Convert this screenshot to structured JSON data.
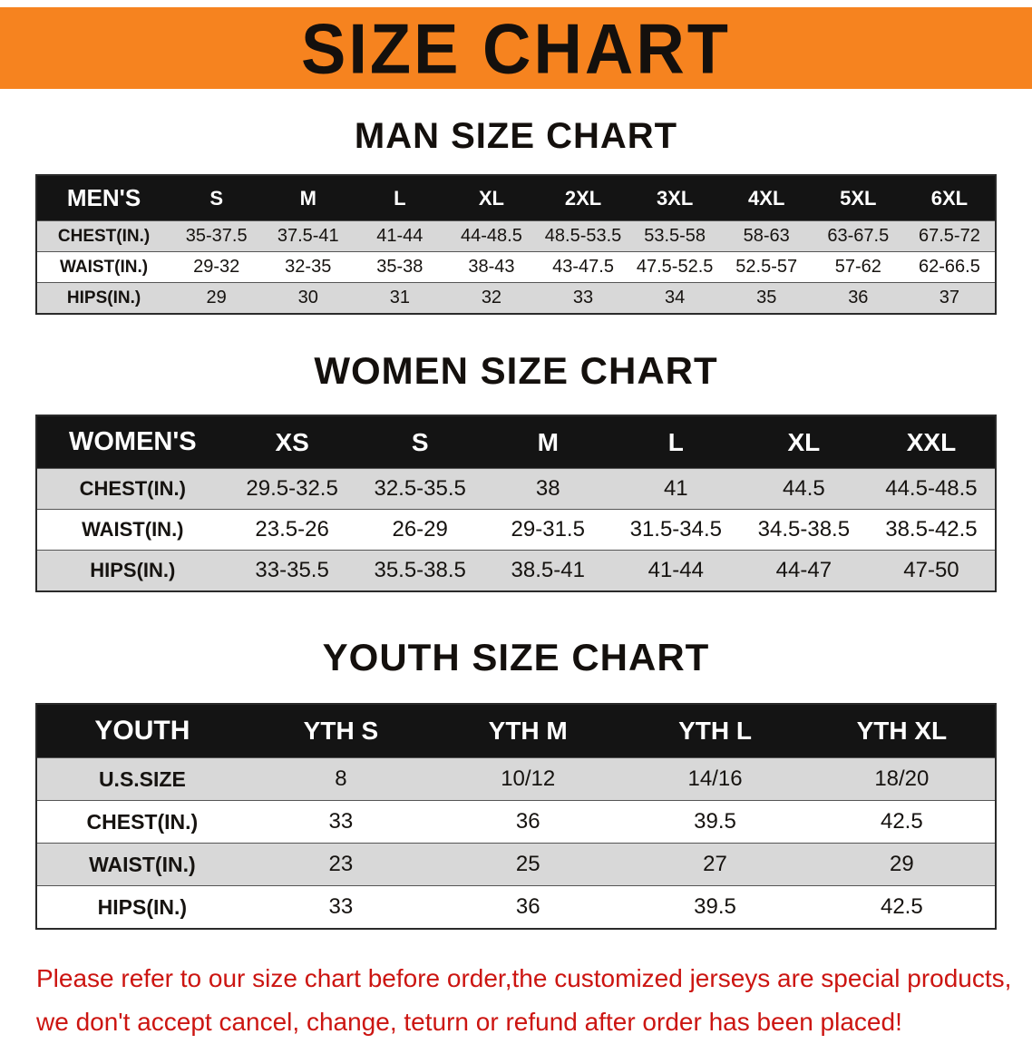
{
  "banner": {
    "title": "SIZE CHART"
  },
  "colors": {
    "banner_bg": "#f6831f",
    "header_bg": "#141414",
    "row_alt": "#d8d8d8",
    "footer_red": "#cc1511"
  },
  "men": {
    "heading": "MAN SIZE CHART",
    "table": {
      "header": [
        "MEN'S",
        "S",
        "M",
        "L",
        "XL",
        "2XL",
        "3XL",
        "4XL",
        "5XL",
        "6XL"
      ],
      "rows": [
        {
          "label": "CHEST(IN.)",
          "values": [
            "35-37.5",
            "37.5-41",
            "41-44",
            "44-48.5",
            "48.5-53.5",
            "53.5-58",
            "58-63",
            "63-67.5",
            "67.5-72"
          ]
        },
        {
          "label": "WAIST(IN.)",
          "values": [
            "29-32",
            "32-35",
            "35-38",
            "38-43",
            "43-47.5",
            "47.5-52.5",
            "52.5-57",
            "57-62",
            "62-66.5"
          ]
        },
        {
          "label": "HIPS(IN.)",
          "values": [
            "29",
            "30",
            "31",
            "32",
            "33",
            "34",
            "35",
            "36",
            "37"
          ]
        }
      ]
    }
  },
  "women": {
    "heading": "WOMEN SIZE CHART",
    "table": {
      "header": [
        "WOMEN'S",
        "XS",
        "S",
        "M",
        "L",
        "XL",
        "XXL"
      ],
      "rows": [
        {
          "label": "CHEST(IN.)",
          "values": [
            "29.5-32.5",
            "32.5-35.5",
            "38",
            "41",
            "44.5",
            "44.5-48.5"
          ]
        },
        {
          "label": "WAIST(IN.)",
          "values": [
            "23.5-26",
            "26-29",
            "29-31.5",
            "31.5-34.5",
            "34.5-38.5",
            "38.5-42.5"
          ]
        },
        {
          "label": "HIPS(IN.)",
          "values": [
            "33-35.5",
            "35.5-38.5",
            "38.5-41",
            "41-44",
            "44-47",
            "47-50"
          ]
        }
      ]
    }
  },
  "youth": {
    "heading": "YOUTH SIZE CHART",
    "table": {
      "header": [
        "YOUTH",
        "YTH S",
        "YTH M",
        "YTH L",
        "YTH XL"
      ],
      "rows": [
        {
          "label": "U.S.SIZE",
          "values": [
            "8",
            "10/12",
            "14/16",
            "18/20"
          ]
        },
        {
          "label": "CHEST(IN.)",
          "values": [
            "33",
            "36",
            "39.5",
            "42.5"
          ]
        },
        {
          "label": "WAIST(IN.)",
          "values": [
            "23",
            "25",
            "27",
            "29"
          ]
        },
        {
          "label": "HIPS(IN.)",
          "values": [
            "33",
            "36",
            "39.5",
            "42.5"
          ]
        }
      ]
    }
  },
  "footer": {
    "line1": "Please refer to our size chart before order,the customized jerseys are special products,",
    "line2": "we don't accept cancel, change, teturn or refund after order has been placed!"
  }
}
